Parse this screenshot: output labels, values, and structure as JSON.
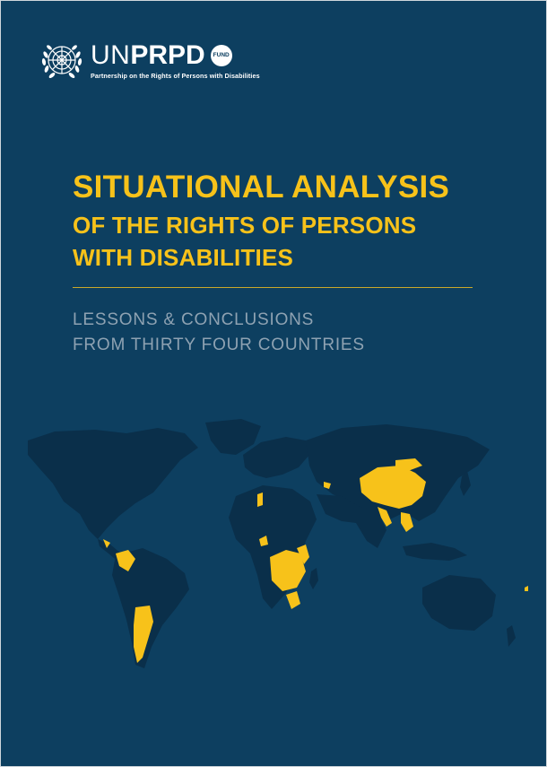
{
  "brand": {
    "prefix": "UN",
    "name": "PRPD",
    "badge": "FUND",
    "tagline": "Partnership on the Rights of Persons with Disabilities"
  },
  "title": {
    "line1": "SITUATIONAL ANALYSIS",
    "line2": "OF THE RIGHTS OF PERSONS",
    "line3": "WITH DISABILITIES"
  },
  "subtitle": {
    "line1": "LESSONS & CONCLUSIONS",
    "line2": "FROM THIRTY FOUR COUNTRIES"
  },
  "colors": {
    "background": "#0d3f60",
    "title": "#f7c21a",
    "land": "#0a2f4a",
    "highlight": "#f7c21a",
    "subtitle": "#8ea2b2"
  },
  "icons": [
    "un-emblem-icon",
    "world-map"
  ]
}
